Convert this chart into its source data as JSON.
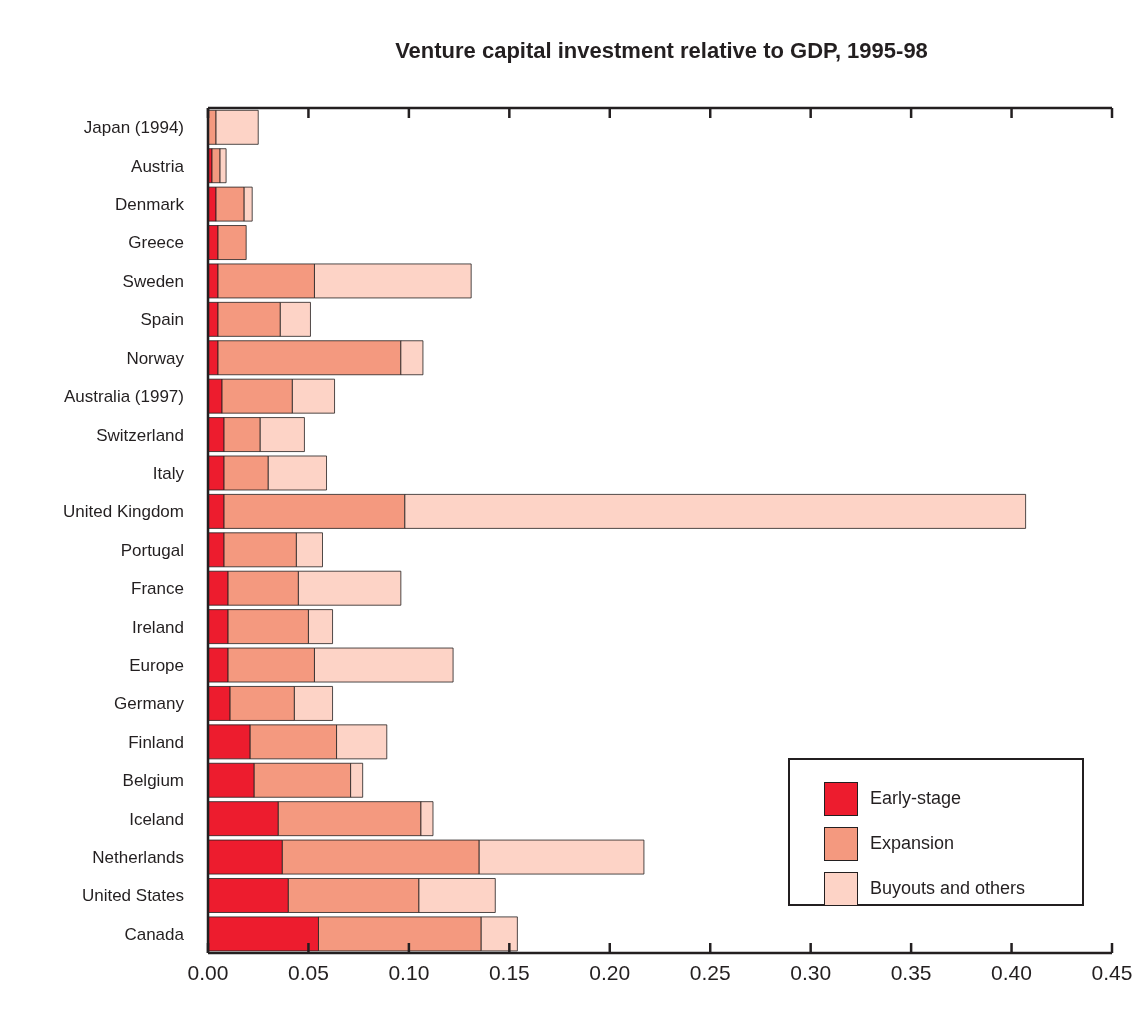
{
  "chart_data": {
    "type": "bar",
    "title": "Venture capital investment relative to GDP, 1995-98",
    "orientation": "horizontal",
    "stacked": true,
    "categories": [
      "Japan (1994)",
      "Austria",
      "Denmark",
      "Greece",
      "Sweden",
      "Spain",
      "Norway",
      "Australia (1997)",
      "Switzerland",
      "Italy",
      "United Kingdom",
      "Portugal",
      "France",
      "Ireland",
      "Europe",
      "Germany",
      "Finland",
      "Belgium",
      "Iceland",
      "Netherlands",
      "United States",
      "Canada"
    ],
    "series": [
      {
        "name": "Early-stage",
        "color": "#ed1c2e",
        "values": [
          0,
          0.002,
          0.004,
          0.005,
          0.005,
          0.005,
          0.005,
          0.007,
          0.008,
          0.008,
          0.008,
          0.008,
          0.01,
          0.01,
          0.01,
          0.011,
          0.021,
          0.023,
          0.035,
          0.037,
          0.04,
          0.055
        ]
      },
      {
        "name": "Expansion",
        "color": "#f4997f",
        "values": [
          0.004,
          0.004,
          0.014,
          0.014,
          0.048,
          0.031,
          0.091,
          0.035,
          0.018,
          0.022,
          0.09,
          0.036,
          0.035,
          0.04,
          0.043,
          0.032,
          0.043,
          0.048,
          0.071,
          0.098,
          0.065,
          0.081
        ]
      },
      {
        "name": "Buyouts and others",
        "color": "#fdd3c6",
        "values": [
          0.021,
          0.003,
          0.004,
          0,
          0.078,
          0.015,
          0.011,
          0.021,
          0.022,
          0.029,
          0.309,
          0.013,
          0.051,
          0.012,
          0.069,
          0.019,
          0.025,
          0.006,
          0.006,
          0.082,
          0.038,
          0.018
        ]
      }
    ],
    "xlim": [
      0,
      0.45
    ],
    "xticks": [
      {
        "value": 0,
        "label": "0.00"
      },
      {
        "value": 0.05,
        "label": "0.05"
      },
      {
        "value": 0.1,
        "label": "0.10"
      },
      {
        "value": 0.15,
        "label": "0.15"
      },
      {
        "value": 0.2,
        "label": "0.20"
      },
      {
        "value": 0.25,
        "label": "0.25"
      },
      {
        "value": 0.3,
        "label": "0.30"
      },
      {
        "value": 0.35,
        "label": "0.35"
      },
      {
        "value": 0.4,
        "label": "0.40"
      },
      {
        "value": 0.45,
        "label": "0.45"
      }
    ],
    "legend": "bottom right",
    "grid": false
  }
}
